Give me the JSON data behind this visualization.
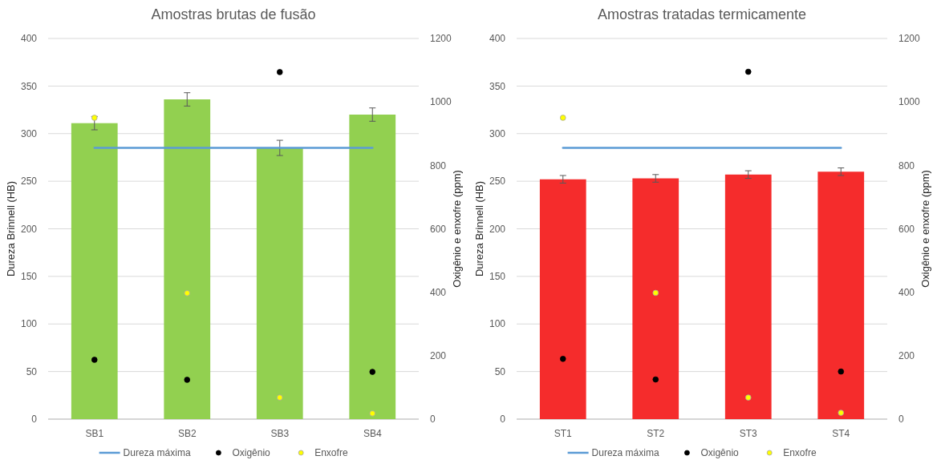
{
  "chart_data": [
    {
      "type": "bar",
      "title": "Amostras brutas de fusão",
      "ylabel": "Dureza Brinnell (HB)",
      "y2label": "Oxigênio e enxofre (ppm)",
      "categories": [
        "SB1",
        "SB2",
        "SB3",
        "SB4"
      ],
      "ylim": [
        0,
        400
      ],
      "yticks": [
        0,
        50,
        100,
        150,
        200,
        250,
        300,
        350,
        400
      ],
      "y2lim": [
        0,
        1200
      ],
      "y2ticks": [
        0,
        200,
        400,
        600,
        800,
        1000,
        1200
      ],
      "grid": "y",
      "legend": "bottom",
      "series": [
        {
          "color": "#92d050",
          "values": [
            311,
            336,
            285,
            320
          ],
          "errors": [
            7,
            7,
            8,
            7
          ]
        },
        {
          "type": "line",
          "name": "Dureza máxima",
          "color": "#5b9bd5",
          "values": [
            285,
            285,
            285,
            285
          ]
        },
        {
          "type": "scatter",
          "name": "Oxigênio",
          "color": "#000000",
          "axis": "y2",
          "marker": "circle",
          "values": [
            187,
            124,
            1094,
            149
          ]
        },
        {
          "type": "scatter",
          "name": "Enxofre",
          "color": "#ffff00",
          "axis": "y2",
          "marker": "circle",
          "values": [
            950,
            397,
            68,
            18
          ]
        }
      ]
    },
    {
      "type": "bar",
      "title": "Amostras tratadas termicamente",
      "ylabel": "Dureza Brinnell (HB)",
      "y2label": "Oxigênio e enxofre (ppm)",
      "categories": [
        "ST1",
        "ST2",
        "ST3",
        "ST4"
      ],
      "ylim": [
        0,
        400
      ],
      "yticks": [
        0,
        50,
        100,
        150,
        200,
        250,
        300,
        350,
        400
      ],
      "y2lim": [
        0,
        1200
      ],
      "y2ticks": [
        0,
        200,
        400,
        600,
        800,
        1000,
        1200
      ],
      "grid": "y",
      "legend": "bottom",
      "series": [
        {
          "color": "#f52c2c",
          "values": [
            252,
            253,
            257,
            260
          ],
          "errors": [
            4,
            4,
            4,
            4
          ]
        },
        {
          "type": "line",
          "name": "Dureza máxima",
          "color": "#5b9bd5",
          "values": [
            285,
            285,
            285,
            285
          ]
        },
        {
          "type": "scatter",
          "name": "Oxigênio",
          "color": "#000000",
          "axis": "y2",
          "marker": "circle",
          "values": [
            190,
            125,
            1095,
            150
          ]
        },
        {
          "type": "scatter",
          "name": "Enxofre",
          "color": "#ffff00",
          "axis": "y2",
          "marker": "circle",
          "values": [
            950,
            398,
            68,
            20
          ]
        }
      ]
    }
  ]
}
